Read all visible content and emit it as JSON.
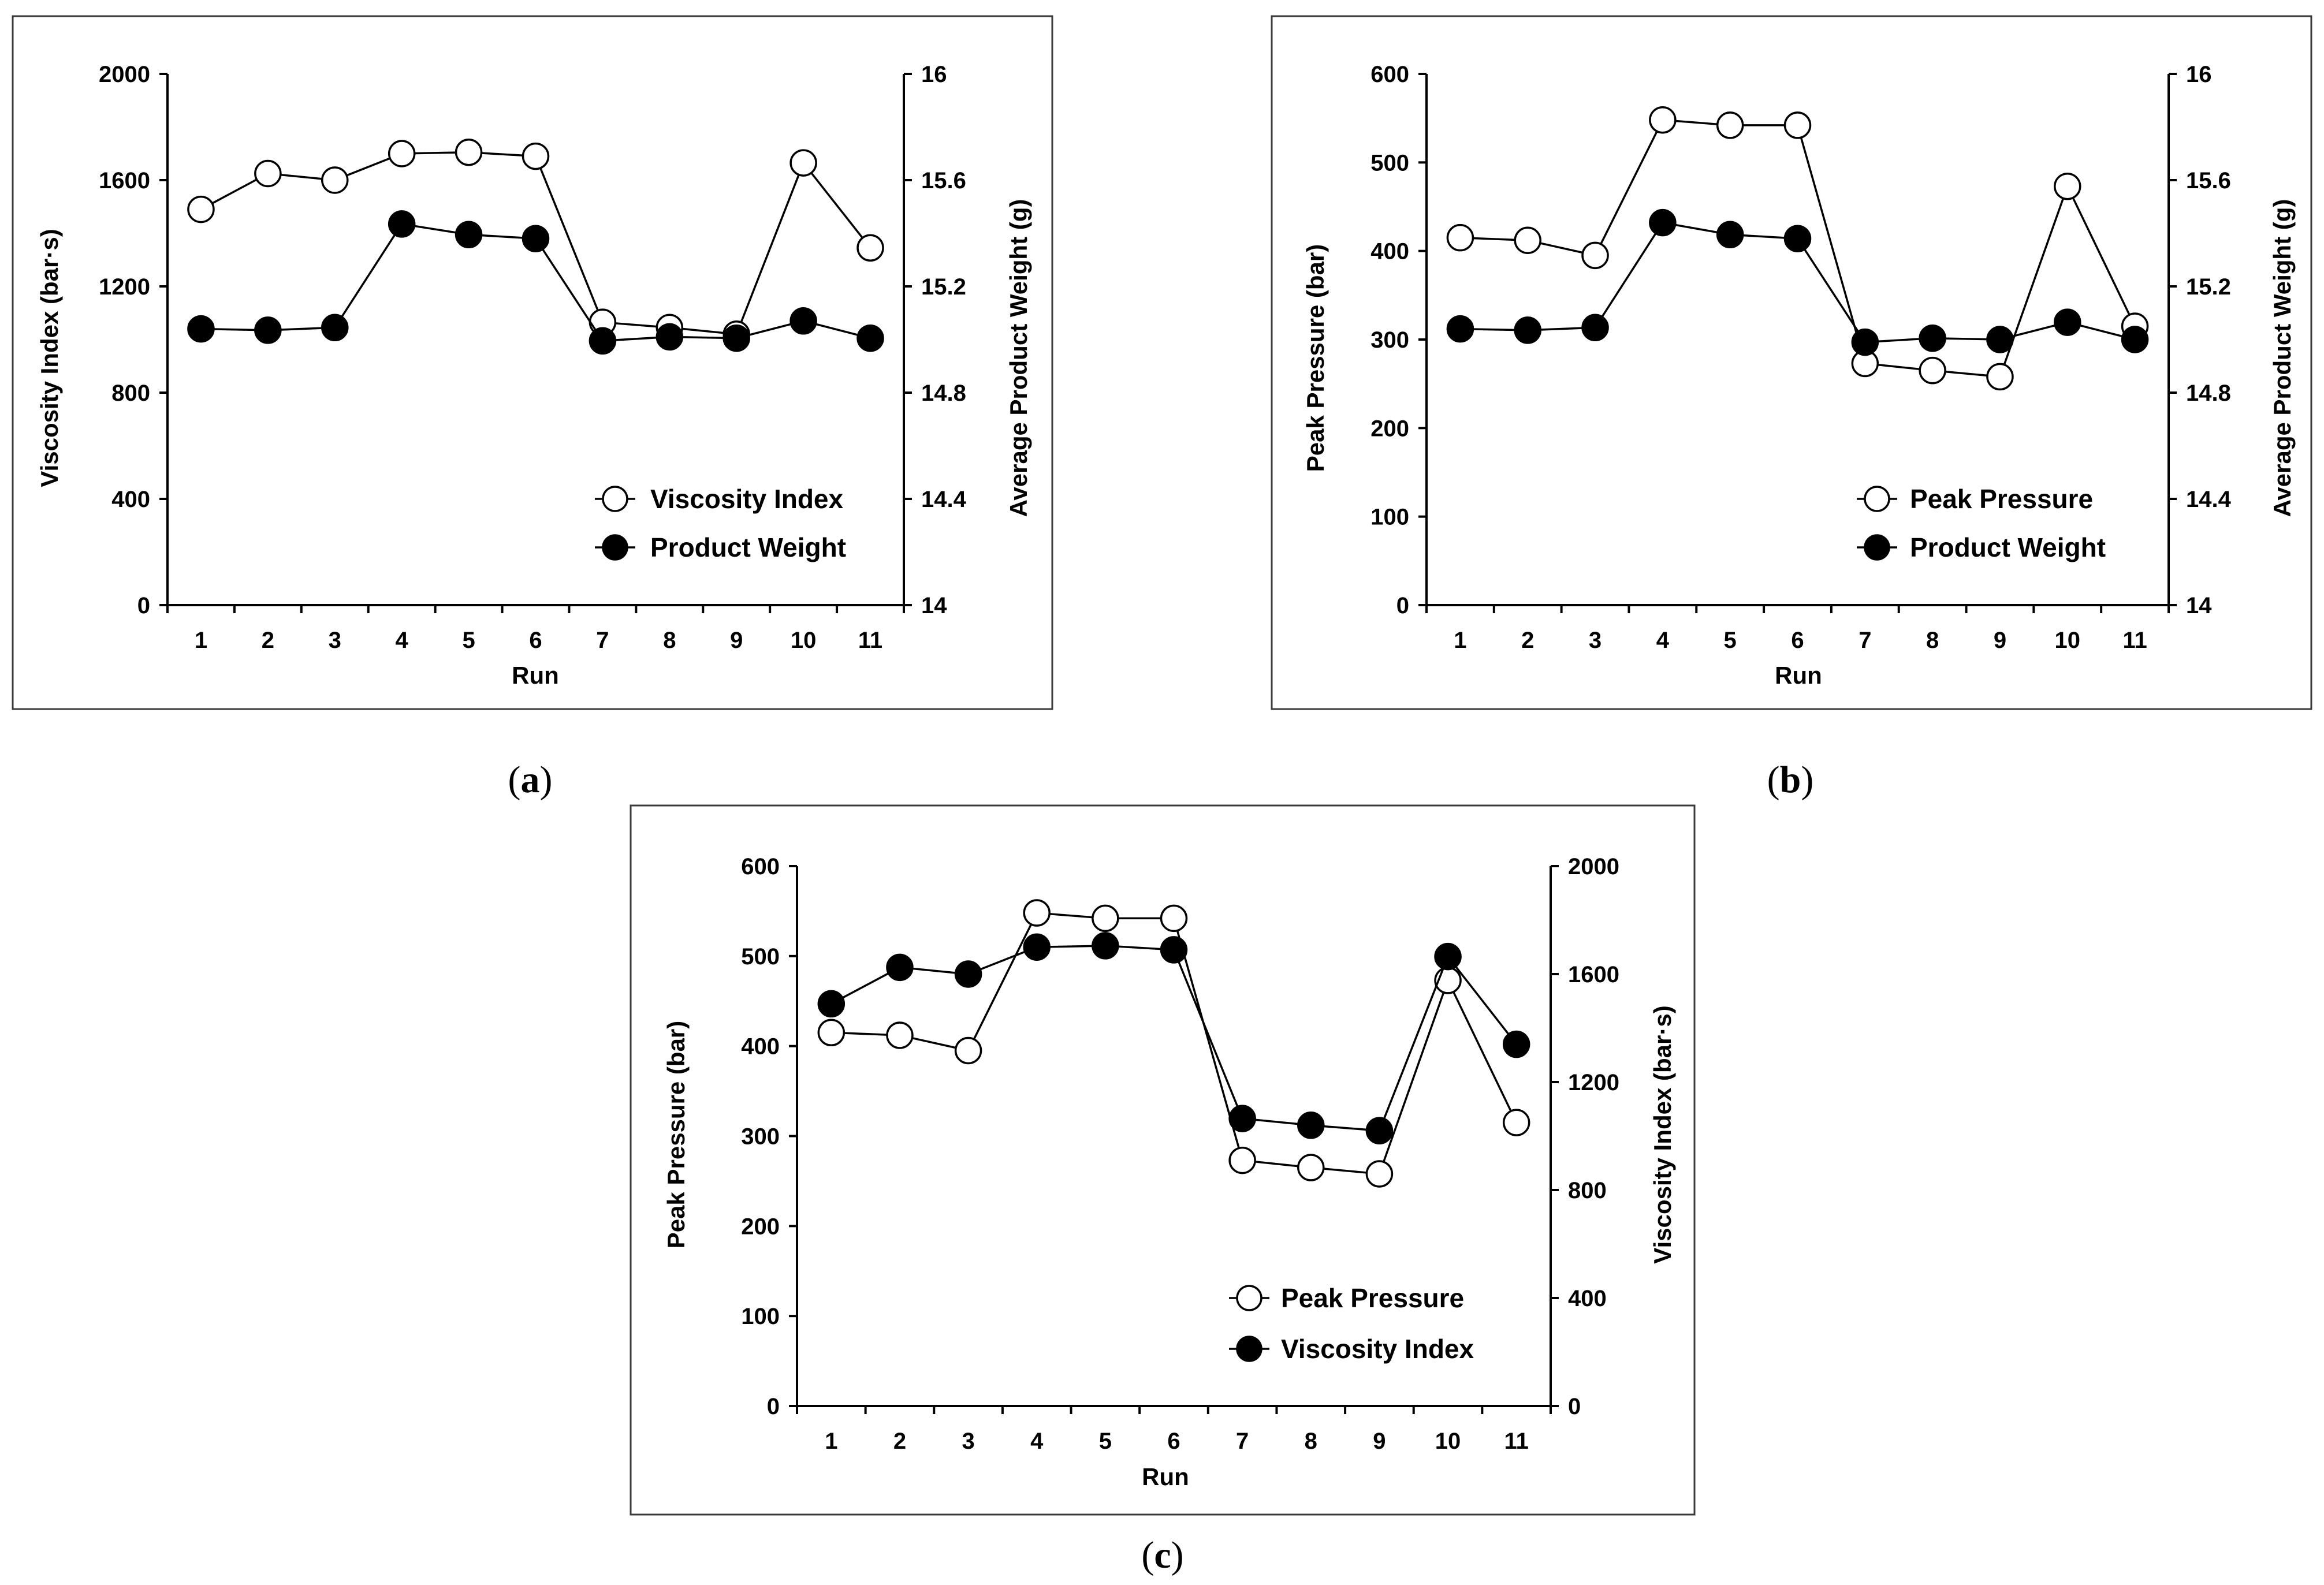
{
  "chart_data": [
    {
      "id": "a",
      "type": "line",
      "caption": "a",
      "xlabel": "Run",
      "categories": [
        "1",
        "2",
        "3",
        "4",
        "5",
        "6",
        "7",
        "8",
        "9",
        "10",
        "11"
      ],
      "left_axis": {
        "label": "Viscosity Index (bar·s)",
        "ylim": [
          0,
          2000
        ],
        "ticks": [
          "0",
          "400",
          "800",
          "1200",
          "1600",
          "2000"
        ]
      },
      "right_axis": {
        "label": "Average Product Weight (g)",
        "ylim": [
          14,
          16
        ],
        "ticks": [
          "14",
          "14.4",
          "14.8",
          "15.2",
          "15.6",
          "16"
        ]
      },
      "legend_position": "bottom-right",
      "series": [
        {
          "name": "Viscosity Index",
          "axis": "left",
          "marker": "open-circle",
          "values": [
            1490,
            1625,
            1600,
            1700,
            1705,
            1690,
            1065,
            1045,
            1020,
            1665,
            1345
          ]
        },
        {
          "name": "Product Weight",
          "axis": "right",
          "marker": "filled-circle",
          "values": [
            15.04,
            15.035,
            15.045,
            15.435,
            15.395,
            15.38,
            14.995,
            15.01,
            15.005,
            15.07,
            15.005
          ]
        }
      ]
    },
    {
      "id": "b",
      "type": "line",
      "caption": "b",
      "xlabel": "Run",
      "categories": [
        "1",
        "2",
        "3",
        "4",
        "5",
        "6",
        "7",
        "8",
        "9",
        "10",
        "11"
      ],
      "left_axis": {
        "label": "Peak Pressure (bar)",
        "ylim": [
          0,
          600
        ],
        "ticks": [
          "0",
          "100",
          "200",
          "300",
          "400",
          "500",
          "600"
        ]
      },
      "right_axis": {
        "label": "Average Product Weight (g)",
        "ylim": [
          14,
          16
        ],
        "ticks": [
          "14",
          "14.4",
          "14.8",
          "15.2",
          "15.6",
          "16"
        ]
      },
      "legend_position": "bottom-right",
      "series": [
        {
          "name": "Peak Pressure",
          "axis": "left",
          "marker": "open-circle",
          "values": [
            415,
            412,
            395,
            548,
            542,
            542,
            273,
            265,
            258,
            473,
            315
          ]
        },
        {
          "name": "Product Weight",
          "axis": "right",
          "marker": "filled-circle",
          "values": [
            15.04,
            15.035,
            15.045,
            15.44,
            15.395,
            15.38,
            14.99,
            15.005,
            15.0,
            15.065,
            15.0
          ]
        }
      ]
    },
    {
      "id": "c",
      "type": "line",
      "caption": "c",
      "xlabel": "Run",
      "categories": [
        "1",
        "2",
        "3",
        "4",
        "5",
        "6",
        "7",
        "8",
        "9",
        "10",
        "11"
      ],
      "left_axis": {
        "label": "Peak Pressure (bar)",
        "ylim": [
          0,
          600
        ],
        "ticks": [
          "0",
          "100",
          "200",
          "300",
          "400",
          "500",
          "600"
        ]
      },
      "right_axis": {
        "label": "Viscosity Index (bar·s)",
        "ylim": [
          0,
          2000
        ],
        "ticks": [
          "0",
          "400",
          "800",
          "1200",
          "1600",
          "2000"
        ]
      },
      "legend_position": "bottom-right",
      "series": [
        {
          "name": "Peak Pressure",
          "axis": "left",
          "marker": "open-circle",
          "values": [
            415,
            412,
            395,
            548,
            542,
            542,
            273,
            265,
            258,
            473,
            315
          ]
        },
        {
          "name": "Viscosity Index",
          "axis": "right",
          "marker": "filled-circle",
          "values": [
            1490,
            1625,
            1600,
            1700,
            1705,
            1690,
            1065,
            1040,
            1020,
            1665,
            1340
          ]
        }
      ]
    }
  ]
}
